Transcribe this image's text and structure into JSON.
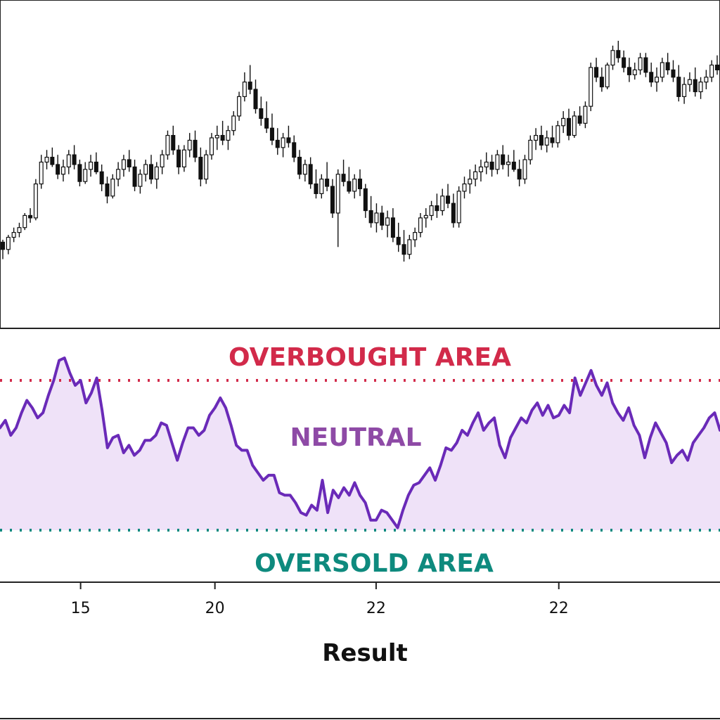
{
  "chart_data": [
    {
      "type": "candlestick",
      "title": "",
      "ylim": [
        0,
        100
      ],
      "candles": [
        [
          22,
          23,
          15,
          19
        ],
        [
          19,
          25,
          17,
          24
        ],
        [
          24,
          28,
          22,
          26
        ],
        [
          26,
          30,
          24,
          28
        ],
        [
          28,
          34,
          27,
          33
        ],
        [
          33,
          36,
          30,
          32
        ],
        [
          32,
          48,
          31,
          46
        ],
        [
          46,
          58,
          44,
          55
        ],
        [
          55,
          60,
          52,
          57
        ],
        [
          57,
          61,
          53,
          54
        ],
        [
          54,
          58,
          48,
          50
        ],
        [
          50,
          56,
          47,
          53
        ],
        [
          53,
          60,
          50,
          58
        ],
        [
          58,
          62,
          52,
          54
        ],
        [
          54,
          56,
          45,
          47
        ],
        [
          47,
          55,
          46,
          52
        ],
        [
          52,
          58,
          49,
          55
        ],
        [
          55,
          59,
          50,
          51
        ],
        [
          51,
          54,
          43,
          46
        ],
        [
          46,
          49,
          38,
          41
        ],
        [
          41,
          50,
          40,
          48
        ],
        [
          48,
          55,
          45,
          52
        ],
        [
          52,
          58,
          49,
          56
        ],
        [
          56,
          60,
          51,
          53
        ],
        [
          53,
          56,
          43,
          45
        ],
        [
          45,
          52,
          42,
          50
        ],
        [
          50,
          56,
          47,
          54
        ],
        [
          54,
          58,
          46,
          48
        ],
        [
          48,
          55,
          44,
          53
        ],
        [
          53,
          60,
          50,
          58
        ],
        [
          58,
          68,
          56,
          66
        ],
        [
          66,
          70,
          58,
          60
        ],
        [
          60,
          62,
          50,
          53
        ],
        [
          53,
          62,
          51,
          60
        ],
        [
          60,
          67,
          57,
          64
        ],
        [
          64,
          68,
          55,
          57
        ],
        [
          57,
          61,
          45,
          48
        ],
        [
          48,
          60,
          46,
          58
        ],
        [
          58,
          67,
          56,
          65
        ],
        [
          65,
          70,
          60,
          66
        ],
        [
          66,
          72,
          62,
          64
        ],
        [
          64,
          70,
          60,
          68
        ],
        [
          68,
          76,
          66,
          74
        ],
        [
          74,
          84,
          72,
          82
        ],
        [
          82,
          92,
          80,
          88
        ],
        [
          88,
          95,
          83,
          85
        ],
        [
          85,
          89,
          75,
          77
        ],
        [
          77,
          82,
          70,
          73
        ],
        [
          73,
          80,
          67,
          69
        ],
        [
          69,
          75,
          62,
          64
        ],
        [
          64,
          69,
          58,
          61
        ],
        [
          61,
          67,
          57,
          65
        ],
        [
          65,
          70,
          61,
          63
        ],
        [
          63,
          66,
          55,
          57
        ],
        [
          57,
          60,
          48,
          50
        ],
        [
          50,
          56,
          47,
          54
        ],
        [
          54,
          57,
          44,
          46
        ],
        [
          46,
          52,
          40,
          42
        ],
        [
          42,
          50,
          40,
          48
        ],
        [
          48,
          55,
          43,
          45
        ],
        [
          45,
          48,
          32,
          34
        ],
        [
          34,
          52,
          20,
          50
        ],
        [
          50,
          56,
          45,
          47
        ],
        [
          47,
          53,
          42,
          43
        ],
        [
          43,
          50,
          40,
          48
        ],
        [
          48,
          52,
          41,
          44
        ],
        [
          44,
          46,
          32,
          35
        ],
        [
          35,
          41,
          28,
          30
        ],
        [
          30,
          38,
          26,
          34
        ],
        [
          34,
          37,
          27,
          29
        ],
        [
          29,
          35,
          24,
          32
        ],
        [
          32,
          36,
          22,
          24
        ],
        [
          24,
          30,
          18,
          21
        ],
        [
          21,
          27,
          14,
          17
        ],
        [
          17,
          25,
          15,
          23
        ],
        [
          23,
          28,
          20,
          26
        ],
        [
          26,
          34,
          24,
          32
        ],
        [
          32,
          36,
          28,
          33
        ],
        [
          33,
          39,
          31,
          37
        ],
        [
          37,
          42,
          32,
          35
        ],
        [
          35,
          44,
          33,
          41
        ],
        [
          41,
          46,
          36,
          38
        ],
        [
          38,
          42,
          28,
          30
        ],
        [
          30,
          45,
          28,
          43
        ],
        [
          43,
          49,
          40,
          46
        ],
        [
          46,
          52,
          42,
          48
        ],
        [
          48,
          54,
          45,
          51
        ],
        [
          51,
          56,
          47,
          53
        ],
        [
          53,
          59,
          50,
          55
        ],
        [
          55,
          58,
          49,
          52
        ],
        [
          52,
          60,
          50,
          58
        ],
        [
          58,
          62,
          52,
          54
        ],
        [
          54,
          58,
          49,
          55
        ],
        [
          55,
          60,
          51,
          52
        ],
        [
          52,
          56,
          45,
          48
        ],
        [
          48,
          58,
          46,
          56
        ],
        [
          56,
          66,
          54,
          64
        ],
        [
          64,
          69,
          60,
          66
        ],
        [
          66,
          70,
          60,
          62
        ],
        [
          62,
          68,
          59,
          65
        ],
        [
          65,
          70,
          61,
          63
        ],
        [
          63,
          72,
          61,
          70
        ],
        [
          70,
          76,
          67,
          73
        ],
        [
          73,
          77,
          64,
          66
        ],
        [
          66,
          76,
          65,
          74
        ],
        [
          74,
          78,
          70,
          71
        ],
        [
          71,
          80,
          69,
          78
        ],
        [
          78,
          96,
          76,
          94
        ],
        [
          94,
          98,
          88,
          90
        ],
        [
          90,
          94,
          84,
          86
        ],
        [
          86,
          96,
          85,
          95
        ],
        [
          95,
          103,
          93,
          101
        ],
        [
          101,
          105,
          96,
          98
        ],
        [
          98,
          101,
          92,
          94
        ],
        [
          94,
          98,
          88,
          91
        ],
        [
          91,
          96,
          89,
          93
        ],
        [
          93,
          100,
          91,
          98
        ],
        [
          98,
          100,
          90,
          92
        ],
        [
          92,
          96,
          86,
          88
        ],
        [
          88,
          94,
          84,
          90
        ],
        [
          90,
          98,
          88,
          96
        ],
        [
          96,
          100,
          91,
          93
        ],
        [
          93,
          97,
          88,
          90
        ],
        [
          90,
          95,
          80,
          82
        ],
        [
          82,
          90,
          79,
          87
        ],
        [
          87,
          92,
          84,
          89
        ],
        [
          89,
          94,
          82,
          84
        ],
        [
          84,
          90,
          81,
          88
        ],
        [
          88,
          93,
          85,
          90
        ],
        [
          90,
          97,
          88,
          95
        ],
        [
          95,
          99,
          91,
          93
        ]
      ]
    },
    {
      "type": "area",
      "title": "",
      "xlabel": "Result",
      "ylabel": "",
      "ylim": [
        0,
        100
      ],
      "x_tick_labels": [
        "15",
        "20",
        "22",
        "22"
      ],
      "x_tick_index": [
        15,
        40,
        70,
        104
      ],
      "thresholds": [
        {
          "label": "OVERBOUGHT AREA",
          "value": 80,
          "color": "#d22a4a"
        },
        {
          "label": "OVERSOLD AREA",
          "value": 20,
          "color": "#0e8a7e"
        }
      ],
      "zones": [
        {
          "label": "NEUTRAL",
          "color": "#8e4aa6"
        }
      ],
      "series": [
        {
          "values": [
            61,
            64,
            58,
            61,
            67,
            72,
            69,
            65,
            67,
            74,
            80,
            88,
            89,
            83,
            78,
            80,
            71,
            75,
            81,
            68,
            53,
            57,
            58,
            51,
            54,
            50,
            52,
            56,
            56,
            58,
            63,
            62,
            55,
            48,
            55,
            61,
            61,
            58,
            60,
            66,
            69,
            73,
            69,
            62,
            54,
            52,
            52,
            46,
            43,
            40,
            42,
            42,
            35,
            34,
            34,
            31,
            27,
            26,
            30,
            28,
            40,
            27,
            36,
            33,
            37,
            34,
            39,
            34,
            31,
            24,
            24,
            28,
            27,
            24,
            21,
            28,
            34,
            38,
            39,
            42,
            45,
            40,
            46,
            53,
            52,
            55,
            60,
            58,
            63,
            67,
            60,
            63,
            65,
            54,
            49,
            57,
            61,
            65,
            63,
            68,
            71,
            66,
            70,
            65,
            66,
            70,
            67,
            81,
            74,
            79,
            84,
            78,
            74,
            79,
            71,
            67,
            64,
            69,
            62,
            58,
            49,
            57,
            63,
            59,
            55,
            47,
            50,
            52,
            48,
            55,
            58,
            61,
            65,
            67,
            60
          ]
        }
      ]
    }
  ],
  "colors": {
    "price_panel_border": "#222222",
    "candle": "#111111",
    "rsi_line": "#6a2ab8",
    "rsi_fill": "#efe2f8",
    "overbought": "#d22a4a",
    "oversold": "#0e8a7e",
    "neutral": "#8e4aa6"
  }
}
